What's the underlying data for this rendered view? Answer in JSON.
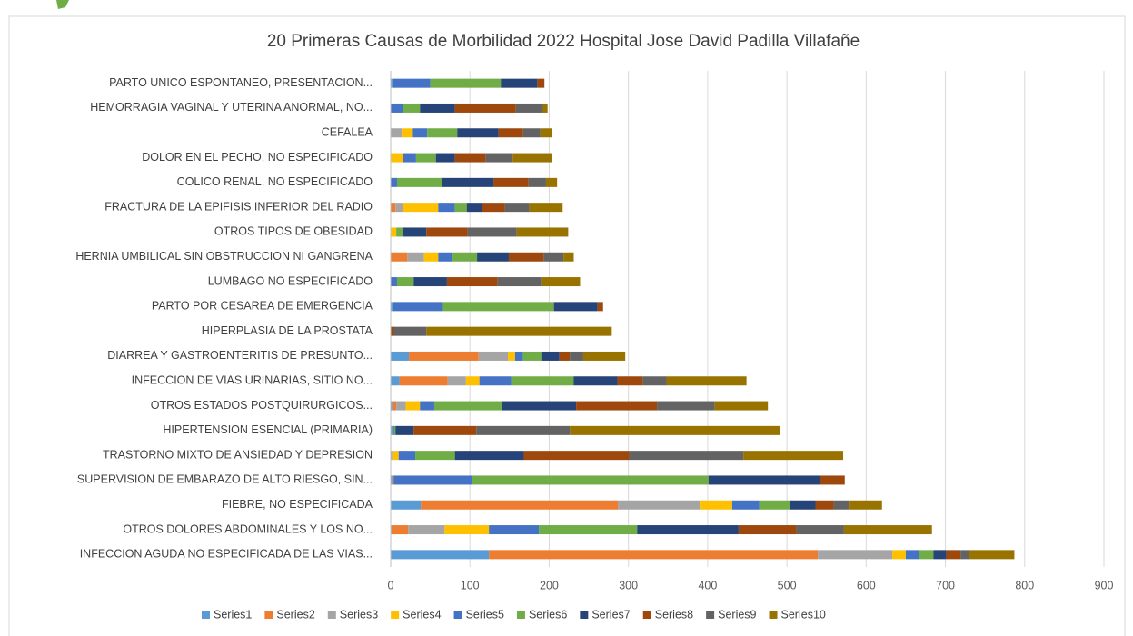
{
  "chart_data": {
    "type": "stacked_barh",
    "title": "20 Primeras Causas de Morbilidad 2022 Hospital Jose David Padilla Villafañe",
    "categories": [
      "INFECCION AGUDA NO ESPECIFICADA DE LAS VIAS...",
      "OTROS DOLORES ABDOMINALES Y LOS NO...",
      "FIEBRE, NO ESPECIFICADA",
      "SUPERVISION DE EMBARAZO DE ALTO RIESGO, SIN...",
      "TRASTORNO MIXTO DE ANSIEDAD Y DEPRESION",
      "HIPERTENSION ESENCIAL (PRIMARIA)",
      "OTROS ESTADOS POSTQUIRURGICOS...",
      "INFECCION DE VIAS URINARIAS, SITIO NO...",
      "DIARREA Y GASTROENTERITIS DE PRESUNTO...",
      "HIPERPLASIA DE LA PROSTATA",
      "PARTO POR CESAREA DE EMERGENCIA",
      "LUMBAGO NO ESPECIFICADO",
      "HERNIA UMBILICAL SIN OBSTRUCCION NI GANGRENA",
      "OTROS TIPOS DE OBESIDAD",
      "FRACTURA DE LA EPIFISIS INFERIOR DEL RADIO",
      "COLICO RENAL, NO ESPECIFICADO",
      "DOLOR EN EL PECHO, NO ESPECIFICADO",
      "CEFALEA",
      "HEMORRAGIA VAGINAL Y UTERINA ANORMAL, NO...",
      "PARTO UNICO ESPONTANEO, PRESENTACION..."
    ],
    "series": [
      {
        "name": "Series1",
        "color": "#5b9bd5",
        "values": [
          124,
          1,
          38,
          2,
          0,
          2,
          2,
          11,
          23,
          0,
          2,
          0,
          0,
          0,
          0,
          0,
          0,
          0,
          0,
          2
        ]
      },
      {
        "name": "Series2",
        "color": "#ed7d31",
        "values": [
          415,
          21,
          249,
          2,
          0,
          0,
          5,
          61,
          88,
          0,
          0,
          0,
          21,
          0,
          6,
          0,
          0,
          0,
          0,
          0
        ]
      },
      {
        "name": "Series3",
        "color": "#a5a5a5",
        "values": [
          94,
          46,
          103,
          0,
          2,
          0,
          12,
          23,
          37,
          0,
          0,
          0,
          21,
          0,
          9,
          0,
          0,
          14,
          0,
          0
        ]
      },
      {
        "name": "Series4",
        "color": "#ffc000",
        "values": [
          17,
          56,
          41,
          0,
          8,
          0,
          18,
          17,
          9,
          0,
          0,
          0,
          18,
          7,
          45,
          0,
          15,
          14,
          0,
          0
        ]
      },
      {
        "name": "Series5",
        "color": "#4472c4",
        "values": [
          17,
          63,
          34,
          99,
          21,
          2,
          18,
          40,
          10,
          0,
          64,
          8,
          18,
          0,
          21,
          8,
          17,
          18,
          15,
          48
        ]
      },
      {
        "name": "Series6",
        "color": "#70ad47",
        "values": [
          18,
          124,
          39,
          298,
          50,
          2,
          85,
          79,
          23,
          0,
          140,
          21,
          31,
          9,
          15,
          57,
          25,
          38,
          22,
          89
        ]
      },
      {
        "name": "Series7",
        "color": "#264478",
        "values": [
          16,
          128,
          32,
          141,
          87,
          23,
          94,
          55,
          23,
          0,
          55,
          42,
          40,
          29,
          19,
          65,
          24,
          52,
          44,
          46
        ]
      },
      {
        "name": "Series8",
        "color": "#9e480e",
        "values": [
          18,
          73,
          23,
          31,
          133,
          79,
          102,
          32,
          13,
          4,
          7,
          64,
          44,
          52,
          29,
          44,
          39,
          31,
          77,
          9
        ]
      },
      {
        "name": "Series9",
        "color": "#636363",
        "values": [
          11,
          60,
          19,
          0,
          144,
          118,
          73,
          30,
          17,
          41,
          0,
          55,
          25,
          62,
          31,
          22,
          34,
          22,
          34,
          0
        ]
      },
      {
        "name": "Series10",
        "color": "#997300",
        "values": [
          57,
          111,
          42,
          0,
          126,
          265,
          67,
          101,
          53,
          234,
          0,
          49,
          13,
          65,
          42,
          14,
          49,
          14,
          6,
          0
        ]
      }
    ],
    "xlim": [
      0,
      900
    ],
    "xticks": [
      0,
      100,
      200,
      300,
      400,
      500,
      600,
      700,
      800,
      900
    ],
    "grid": true,
    "legend": "bottom"
  }
}
